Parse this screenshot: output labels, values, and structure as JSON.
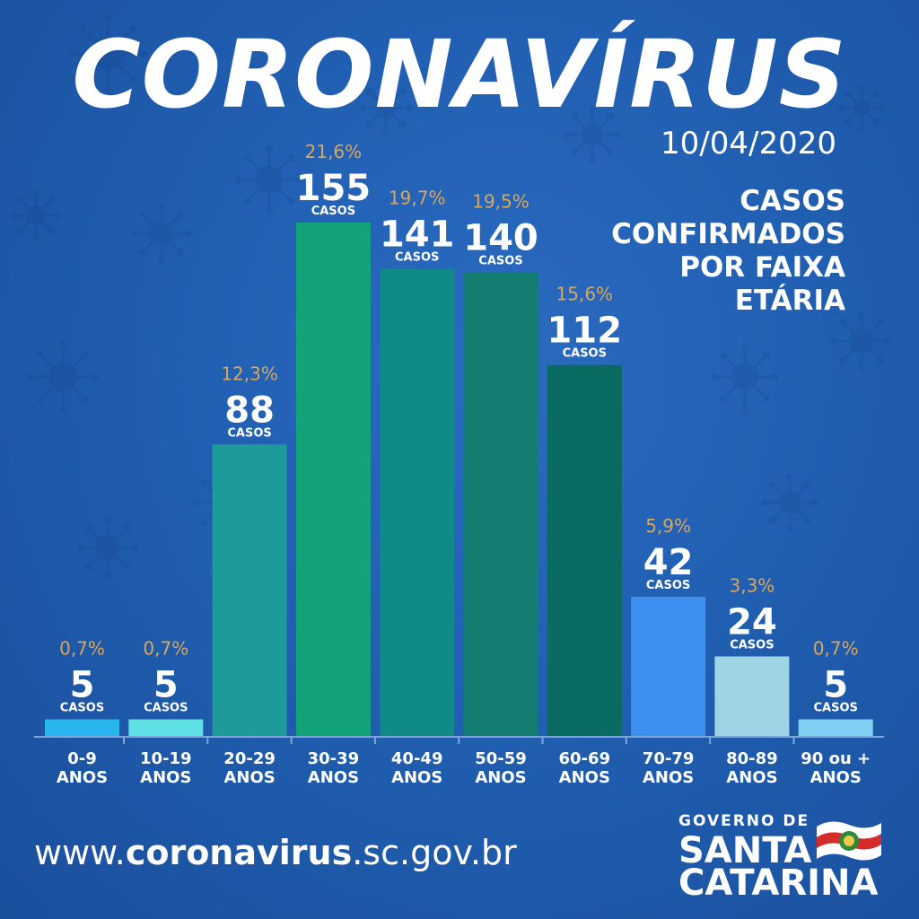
{
  "title": "CORONAVÍRUS",
  "date": "10/04/2020",
  "subtitle": [
    "CASOS",
    "CONFIRMADOS",
    "POR FAIXA",
    "ETÁRIA"
  ],
  "footer": {
    "url_prefix": "www.",
    "url_bold": "coronavirus",
    "url_suffix": ".sc.gov.br"
  },
  "logo": {
    "line0": "GOVERNO DE",
    "line1": "SANTA",
    "line2": "CATARINA",
    "icon": "santa-catarina-flag-icon"
  },
  "colors": {
    "background": "#1f5aa8",
    "percent_text": "#d9a75a",
    "value_text": "#ffffff"
  },
  "chart_data": {
    "type": "bar",
    "unit_label": "CASOS",
    "categories": [
      [
        "0-9",
        "ANOS"
      ],
      [
        "10-19",
        "ANOS"
      ],
      [
        "20-29",
        "ANOS"
      ],
      [
        "30-39",
        "ANOS"
      ],
      [
        "40-49",
        "ANOS"
      ],
      [
        "50-59",
        "ANOS"
      ],
      [
        "60-69",
        "ANOS"
      ],
      [
        "70-79",
        "ANOS"
      ],
      [
        "80-89",
        "ANOS"
      ],
      [
        "90 ou +",
        "ANOS"
      ]
    ],
    "values": [
      5,
      5,
      88,
      155,
      141,
      140,
      112,
      42,
      24,
      5
    ],
    "percents": [
      "0,7%",
      "0,7%",
      "12,3%",
      "21,6%",
      "19,7%",
      "19,5%",
      "15,6%",
      "5,9%",
      "3,3%",
      "0,7%"
    ],
    "bar_colors": [
      "#29b6ef",
      "#5fe0e4",
      "#1f9a9b",
      "#12a37a",
      "#108a86",
      "#137d72",
      "#0a6b62",
      "#3d8ff0",
      "#9fd3e6",
      "#7fd0f2"
    ],
    "ylim": [
      0,
      160
    ]
  }
}
